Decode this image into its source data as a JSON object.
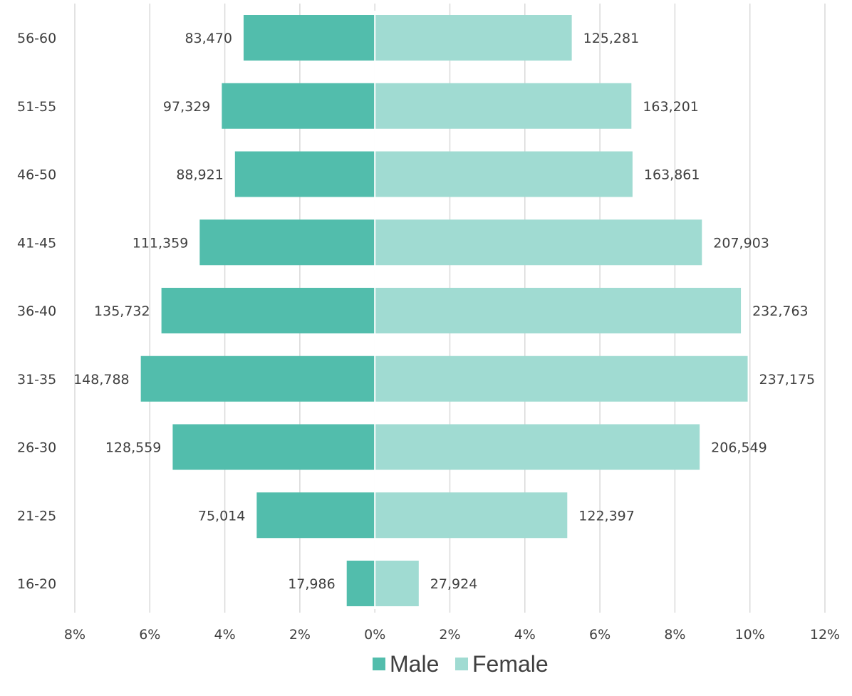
{
  "chart_data": {
    "type": "bar",
    "orientation": "horizontal",
    "layout": "population-pyramid",
    "categories": [
      "56-60",
      "51-55",
      "46-50",
      "41-45",
      "36-40",
      "31-35",
      "26-30",
      "21-25",
      "16-20"
    ],
    "series": [
      {
        "name": "Male",
        "color": "#52bdac",
        "side": "left",
        "percent": [
          3.5,
          4.08,
          3.73,
          4.67,
          5.69,
          6.24,
          5.39,
          3.15,
          0.75
        ],
        "labels": [
          "83,470",
          "97,329",
          "88,921",
          "111,359",
          "135,732",
          "148,788",
          "128,559",
          "75,014",
          "17,986"
        ]
      },
      {
        "name": "Female",
        "color": "#a0dbd2",
        "side": "right",
        "percent": [
          5.25,
          6.84,
          6.87,
          8.72,
          9.76,
          9.94,
          8.66,
          5.13,
          1.17
        ],
        "labels": [
          "125,281",
          "163,201",
          "163,861",
          "207,903",
          "232,763",
          "237,175",
          "206,549",
          "122,397",
          "27,924"
        ]
      }
    ],
    "x_ticks": [
      "8%",
      "6%",
      "4%",
      "2%",
      "0%",
      "2%",
      "4%",
      "6%",
      "8%",
      "10%",
      "12%"
    ],
    "x_tick_values": [
      -8,
      -6,
      -4,
      -2,
      0,
      2,
      4,
      6,
      8,
      10,
      12
    ],
    "xlim": [
      -8,
      12
    ],
    "grid": true,
    "legend_position": "bottom",
    "xlabel": "",
    "ylabel": ""
  }
}
